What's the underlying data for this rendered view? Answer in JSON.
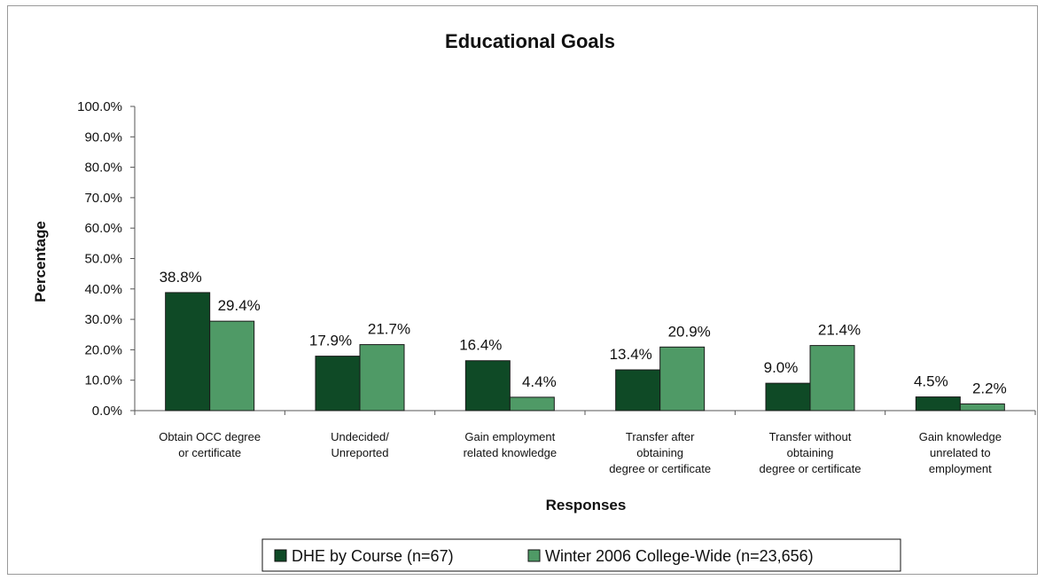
{
  "chart_data": {
    "type": "bar",
    "title": "Educational Goals",
    "xlabel": "Responses",
    "ylabel": "Percentage",
    "ylim": [
      0,
      100
    ],
    "yticks": [
      "0.0%",
      "10.0%",
      "20.0%",
      "30.0%",
      "40.0%",
      "50.0%",
      "60.0%",
      "70.0%",
      "80.0%",
      "90.0%",
      "100.0%"
    ],
    "categories": [
      [
        "Obtain OCC degree",
        "or certificate"
      ],
      [
        "Undecided/",
        "Unreported"
      ],
      [
        "Gain employment",
        "related knowledge"
      ],
      [
        "Transfer after",
        "obtaining",
        "degree or certificate"
      ],
      [
        "Transfer without",
        "obtaining",
        "degree or certificate"
      ],
      [
        "Gain knowledge",
        "unrelated to",
        "employment"
      ]
    ],
    "series": [
      {
        "name": "DHE by Course (n=67)",
        "color": "#0f4a26",
        "values": [
          38.8,
          17.9,
          16.4,
          13.4,
          9.0,
          4.5
        ],
        "labels": [
          "38.8%",
          "17.9%",
          "16.4%",
          "13.4%",
          "9.0%",
          "4.5%"
        ]
      },
      {
        "name": "Winter 2006 College-Wide (n=23,656)",
        "color": "#4f9a66",
        "values": [
          29.4,
          21.7,
          4.4,
          20.9,
          21.4,
          2.2
        ],
        "labels": [
          "29.4%",
          "21.7%",
          "4.4%",
          "20.9%",
          "21.4%",
          "2.2%"
        ]
      }
    ],
    "grid": false,
    "legend_position": "bottom"
  }
}
